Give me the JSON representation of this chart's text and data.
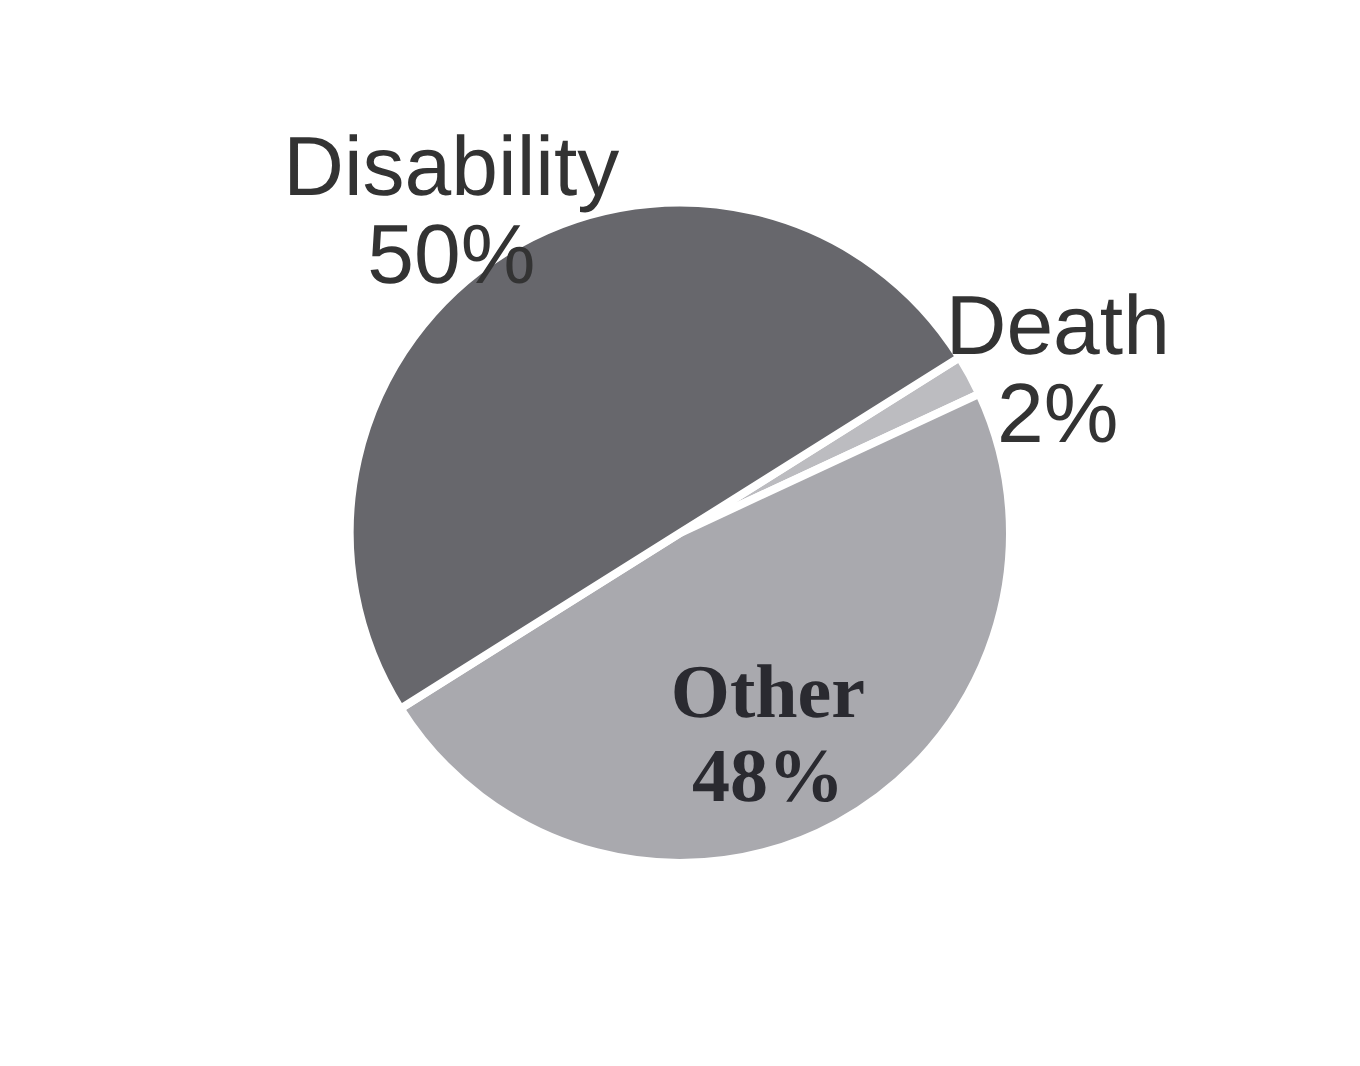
{
  "chart_data": {
    "type": "pie",
    "categories": [
      "Death",
      "Other",
      "Disability"
    ],
    "values": [
      2,
      48,
      50
    ],
    "colors": [
      "#bcbcc0",
      "#a9a9ae",
      "#67676c"
    ],
    "value_labels": [
      "2%",
      "48%",
      "50%"
    ]
  }
}
